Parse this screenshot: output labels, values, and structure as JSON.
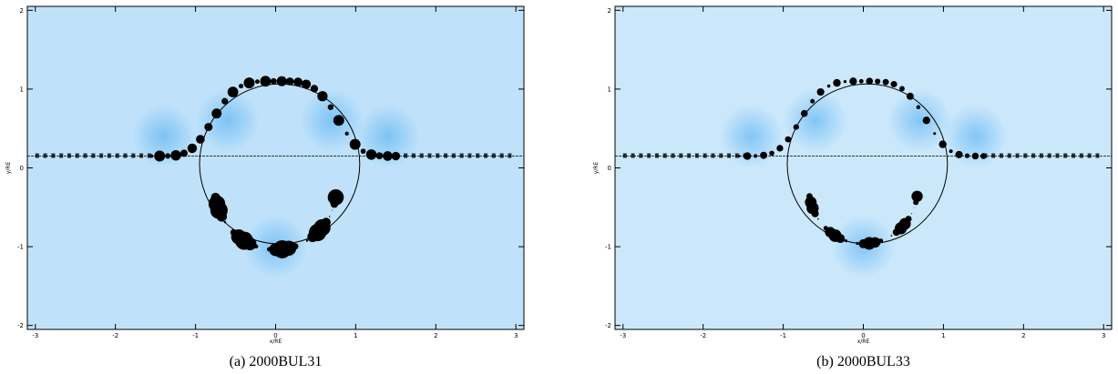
{
  "panels": [
    {
      "caption": "(a) 2000BUL31",
      "x_label": "x/RE",
      "y_label": "y/RE",
      "xlim": [
        -3.1,
        3.1
      ],
      "ylim": [
        -2.05,
        2.05
      ],
      "xticks": [
        -3,
        -2,
        -1,
        0,
        1,
        2,
        3
      ],
      "yticks": [
        -2,
        -1,
        0,
        1,
        2
      ]
    },
    {
      "caption": "(b) 2000BUL33",
      "x_label": "x/RE",
      "y_label": "y/RE",
      "xlim": [
        -3.1,
        3.1
      ],
      "ylim": [
        -2.05,
        2.05
      ],
      "xticks": [
        -3,
        -2,
        -1,
        0,
        1,
        2,
        3
      ],
      "yticks": [
        -2,
        -1,
        0,
        1,
        2
      ]
    }
  ]
}
